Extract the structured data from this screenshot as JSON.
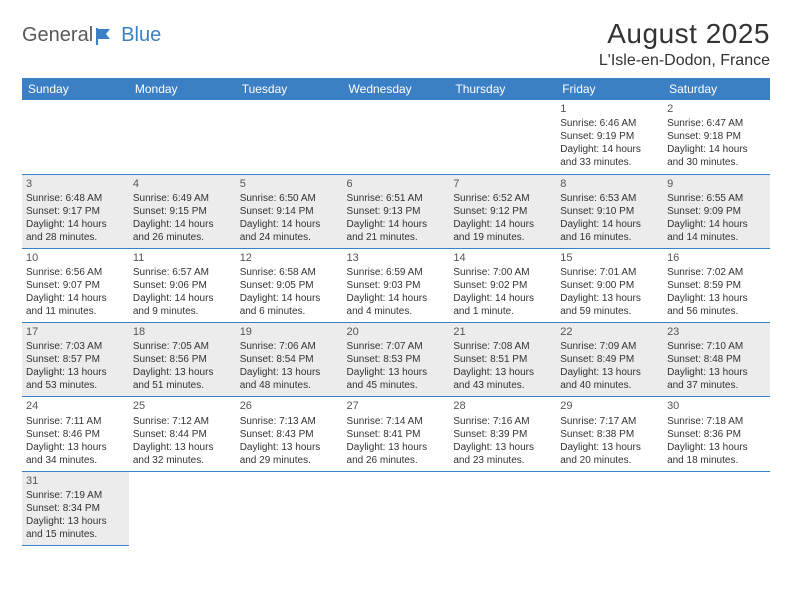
{
  "logo": {
    "part1": "General",
    "part2": "Blue"
  },
  "title": "August 2025",
  "location": "L'Isle-en-Dodon, France",
  "colors": {
    "header_bg": "#3b7fc4",
    "header_text": "#ffffff",
    "shade_bg": "#ececec",
    "border": "#3b7fc4",
    "text": "#333333"
  },
  "day_headers": [
    "Sunday",
    "Monday",
    "Tuesday",
    "Wednesday",
    "Thursday",
    "Friday",
    "Saturday"
  ],
  "weeks": [
    {
      "shade": false,
      "days": [
        null,
        null,
        null,
        null,
        null,
        {
          "n": "1",
          "sunrise": "6:46 AM",
          "sunset": "9:19 PM",
          "daylight": "14 hours and 33 minutes."
        },
        {
          "n": "2",
          "sunrise": "6:47 AM",
          "sunset": "9:18 PM",
          "daylight": "14 hours and 30 minutes."
        }
      ]
    },
    {
      "shade": true,
      "days": [
        {
          "n": "3",
          "sunrise": "6:48 AM",
          "sunset": "9:17 PM",
          "daylight": "14 hours and 28 minutes."
        },
        {
          "n": "4",
          "sunrise": "6:49 AM",
          "sunset": "9:15 PM",
          "daylight": "14 hours and 26 minutes."
        },
        {
          "n": "5",
          "sunrise": "6:50 AM",
          "sunset": "9:14 PM",
          "daylight": "14 hours and 24 minutes."
        },
        {
          "n": "6",
          "sunrise": "6:51 AM",
          "sunset": "9:13 PM",
          "daylight": "14 hours and 21 minutes."
        },
        {
          "n": "7",
          "sunrise": "6:52 AM",
          "sunset": "9:12 PM",
          "daylight": "14 hours and 19 minutes."
        },
        {
          "n": "8",
          "sunrise": "6:53 AM",
          "sunset": "9:10 PM",
          "daylight": "14 hours and 16 minutes."
        },
        {
          "n": "9",
          "sunrise": "6:55 AM",
          "sunset": "9:09 PM",
          "daylight": "14 hours and 14 minutes."
        }
      ]
    },
    {
      "shade": false,
      "days": [
        {
          "n": "10",
          "sunrise": "6:56 AM",
          "sunset": "9:07 PM",
          "daylight": "14 hours and 11 minutes."
        },
        {
          "n": "11",
          "sunrise": "6:57 AM",
          "sunset": "9:06 PM",
          "daylight": "14 hours and 9 minutes."
        },
        {
          "n": "12",
          "sunrise": "6:58 AM",
          "sunset": "9:05 PM",
          "daylight": "14 hours and 6 minutes."
        },
        {
          "n": "13",
          "sunrise": "6:59 AM",
          "sunset": "9:03 PM",
          "daylight": "14 hours and 4 minutes."
        },
        {
          "n": "14",
          "sunrise": "7:00 AM",
          "sunset": "9:02 PM",
          "daylight": "14 hours and 1 minute."
        },
        {
          "n": "15",
          "sunrise": "7:01 AM",
          "sunset": "9:00 PM",
          "daylight": "13 hours and 59 minutes."
        },
        {
          "n": "16",
          "sunrise": "7:02 AM",
          "sunset": "8:59 PM",
          "daylight": "13 hours and 56 minutes."
        }
      ]
    },
    {
      "shade": true,
      "days": [
        {
          "n": "17",
          "sunrise": "7:03 AM",
          "sunset": "8:57 PM",
          "daylight": "13 hours and 53 minutes."
        },
        {
          "n": "18",
          "sunrise": "7:05 AM",
          "sunset": "8:56 PM",
          "daylight": "13 hours and 51 minutes."
        },
        {
          "n": "19",
          "sunrise": "7:06 AM",
          "sunset": "8:54 PM",
          "daylight": "13 hours and 48 minutes."
        },
        {
          "n": "20",
          "sunrise": "7:07 AM",
          "sunset": "8:53 PM",
          "daylight": "13 hours and 45 minutes."
        },
        {
          "n": "21",
          "sunrise": "7:08 AM",
          "sunset": "8:51 PM",
          "daylight": "13 hours and 43 minutes."
        },
        {
          "n": "22",
          "sunrise": "7:09 AM",
          "sunset": "8:49 PM",
          "daylight": "13 hours and 40 minutes."
        },
        {
          "n": "23",
          "sunrise": "7:10 AM",
          "sunset": "8:48 PM",
          "daylight": "13 hours and 37 minutes."
        }
      ]
    },
    {
      "shade": false,
      "days": [
        {
          "n": "24",
          "sunrise": "7:11 AM",
          "sunset": "8:46 PM",
          "daylight": "13 hours and 34 minutes."
        },
        {
          "n": "25",
          "sunrise": "7:12 AM",
          "sunset": "8:44 PM",
          "daylight": "13 hours and 32 minutes."
        },
        {
          "n": "26",
          "sunrise": "7:13 AM",
          "sunset": "8:43 PM",
          "daylight": "13 hours and 29 minutes."
        },
        {
          "n": "27",
          "sunrise": "7:14 AM",
          "sunset": "8:41 PM",
          "daylight": "13 hours and 26 minutes."
        },
        {
          "n": "28",
          "sunrise": "7:16 AM",
          "sunset": "8:39 PM",
          "daylight": "13 hours and 23 minutes."
        },
        {
          "n": "29",
          "sunrise": "7:17 AM",
          "sunset": "8:38 PM",
          "daylight": "13 hours and 20 minutes."
        },
        {
          "n": "30",
          "sunrise": "7:18 AM",
          "sunset": "8:36 PM",
          "daylight": "13 hours and 18 minutes."
        }
      ]
    },
    {
      "shade": true,
      "days": [
        {
          "n": "31",
          "sunrise": "7:19 AM",
          "sunset": "8:34 PM",
          "daylight": "13 hours and 15 minutes."
        },
        null,
        null,
        null,
        null,
        null,
        null
      ]
    }
  ],
  "labels": {
    "sunrise": "Sunrise:",
    "sunset": "Sunset:",
    "daylight": "Daylight:"
  }
}
